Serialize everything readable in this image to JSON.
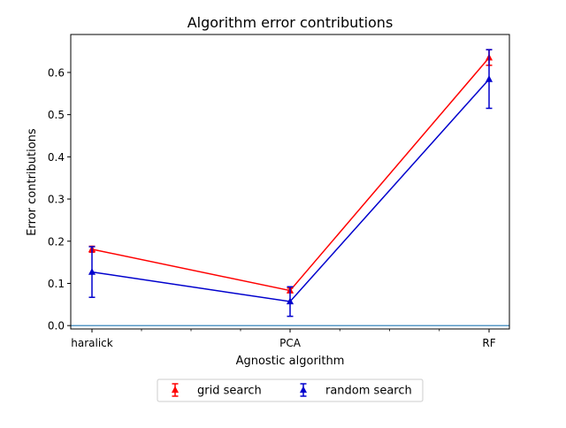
{
  "chart_data": {
    "type": "line",
    "title": "Algorithm error contributions",
    "xlabel": "Agnostic algorithm",
    "ylabel": "Error contributions",
    "categories": [
      "haralick",
      "PCA",
      "RF"
    ],
    "ylim": [
      -0.008,
      0.69
    ],
    "yticks": [
      0.0,
      0.1,
      0.2,
      0.3,
      0.4,
      0.5,
      0.6
    ],
    "ytick_labels": [
      "0.0",
      "0.1",
      "0.2",
      "0.3",
      "0.4",
      "0.5",
      "0.6"
    ],
    "grid": false,
    "legend_position": "bottom-center",
    "baseline": 0.0,
    "series": [
      {
        "name": "grid search",
        "color": "#ff0000",
        "marker": "triangle-up",
        "values": [
          0.181,
          0.083,
          0.635
        ],
        "err_low": [
          0.174,
          0.078,
          0.617
        ],
        "err_high": [
          0.188,
          0.089,
          0.654
        ]
      },
      {
        "name": "random search",
        "color": "#0000cd",
        "marker": "triangle-up",
        "values": [
          0.127,
          0.057,
          0.584
        ],
        "err_low": [
          0.067,
          0.022,
          0.515
        ],
        "err_high": [
          0.187,
          0.092,
          0.654
        ]
      }
    ]
  }
}
